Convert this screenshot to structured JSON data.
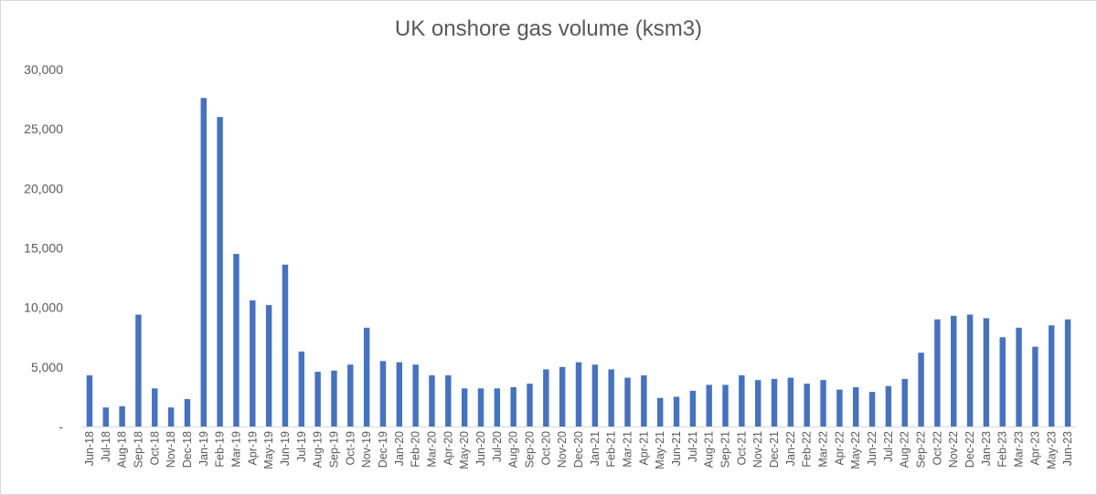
{
  "chart_data": {
    "type": "bar",
    "title": "UK onshore gas volume (ksm3)",
    "xlabel": "",
    "ylabel": "",
    "ylim": [
      0,
      30000
    ],
    "y_ticks": [
      {
        "value": 0,
        "label": "-"
      },
      {
        "value": 5000,
        "label": "5,000"
      },
      {
        "value": 10000,
        "label": "10,000"
      },
      {
        "value": 15000,
        "label": "15,000"
      },
      {
        "value": 20000,
        "label": "20,000"
      },
      {
        "value": 25000,
        "label": "25,000"
      },
      {
        "value": 30000,
        "label": "30,000"
      }
    ],
    "grid": false,
    "bar_color": "#4472c4",
    "categories": [
      "Jun-18",
      "Jul-18",
      "Aug-18",
      "Sep-18",
      "Oct-18",
      "Nov-18",
      "Dec-18",
      "Jan-19",
      "Feb-19",
      "Mar-19",
      "Apr-19",
      "May-19",
      "Jun-19",
      "Jul-19",
      "Aug-19",
      "Sep-19",
      "Oct-19",
      "Nov-19",
      "Dec-19",
      "Jan-20",
      "Feb-20",
      "Mar-20",
      "Apr-20",
      "May-20",
      "Jun-20",
      "Jul-20",
      "Aug-20",
      "Sep-20",
      "Oct-20",
      "Nov-20",
      "Dec-20",
      "Jan-21",
      "Feb-21",
      "Mar-21",
      "Apr-21",
      "May-21",
      "Jun-21",
      "Jul-21",
      "Aug-21",
      "Sep-21",
      "Oct-21",
      "Nov-21",
      "Dec-21",
      "Jan-22",
      "Feb-22",
      "Mar-22",
      "Apr-22",
      "May-22",
      "Jun-22",
      "Jul-22",
      "Aug-22",
      "Sep-22",
      "Oct-22",
      "Nov-22",
      "Dec-22",
      "Jan-23",
      "Feb-23",
      "Mar-23",
      "Apr-23",
      "May-23",
      "Jun-23"
    ],
    "values": [
      4300,
      1600,
      1700,
      9400,
      3200,
      1600,
      2300,
      27600,
      26000,
      14500,
      10600,
      10200,
      13600,
      6300,
      4600,
      4700,
      5200,
      8300,
      5500,
      5400,
      5200,
      4300,
      4300,
      3200,
      3200,
      3200,
      3300,
      3600,
      4800,
      5000,
      5400,
      5200,
      4800,
      4100,
      4300,
      2400,
      2500,
      3000,
      3500,
      3500,
      4300,
      3900,
      4000,
      4100,
      3600,
      3900,
      3100,
      3300,
      2900,
      3400,
      4000,
      6200,
      9000,
      9300,
      9400,
      9100,
      7500,
      8300,
      6700,
      8500,
      9000
    ]
  }
}
